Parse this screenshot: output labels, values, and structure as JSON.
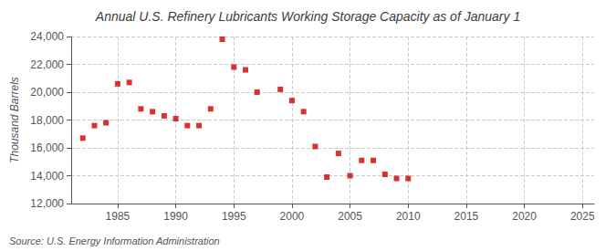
{
  "chart_data": {
    "type": "scatter",
    "title": "Annual U.S. Refinery Lubricants Working Storage Capacity as of January 1",
    "ylabel": "Thousand Barrels",
    "annotations": [
      "Source: U.S. Energy Information Administration"
    ],
    "x": [
      1982,
      1983,
      1984,
      1985,
      1986,
      1987,
      1988,
      1989,
      1990,
      1991,
      1992,
      1993,
      1994,
      1995,
      1996,
      1997,
      1999,
      2000,
      2001,
      2002,
      2003,
      2004,
      2005,
      2006,
      2007,
      2008,
      2009,
      2010
    ],
    "values": [
      16700,
      17600,
      17800,
      20600,
      20700,
      18800,
      18600,
      18300,
      18100,
      17600,
      17600,
      18800,
      23800,
      21800,
      21600,
      20000,
      20200,
      19400,
      18600,
      16100,
      13900,
      15600,
      14000,
      15100,
      15100,
      14100,
      13800,
      13800
    ],
    "color": "#cc0000",
    "marker": "square",
    "xlim": [
      1981,
      2026
    ],
    "ylim": [
      12000,
      24000
    ],
    "xticks": [
      1985,
      1990,
      1995,
      2000,
      2005,
      2010,
      2015,
      2020,
      2025
    ],
    "yticks": [
      {
        "value": 12000,
        "label": "12,000"
      },
      {
        "value": 14000,
        "label": "14,000"
      },
      {
        "value": 16000,
        "label": "16,000"
      },
      {
        "value": 18000,
        "label": "18,000"
      },
      {
        "value": 20000,
        "label": "20,000"
      },
      {
        "value": 22000,
        "label": "22,000"
      },
      {
        "value": 24000,
        "label": "24,000"
      }
    ],
    "grid": true
  }
}
